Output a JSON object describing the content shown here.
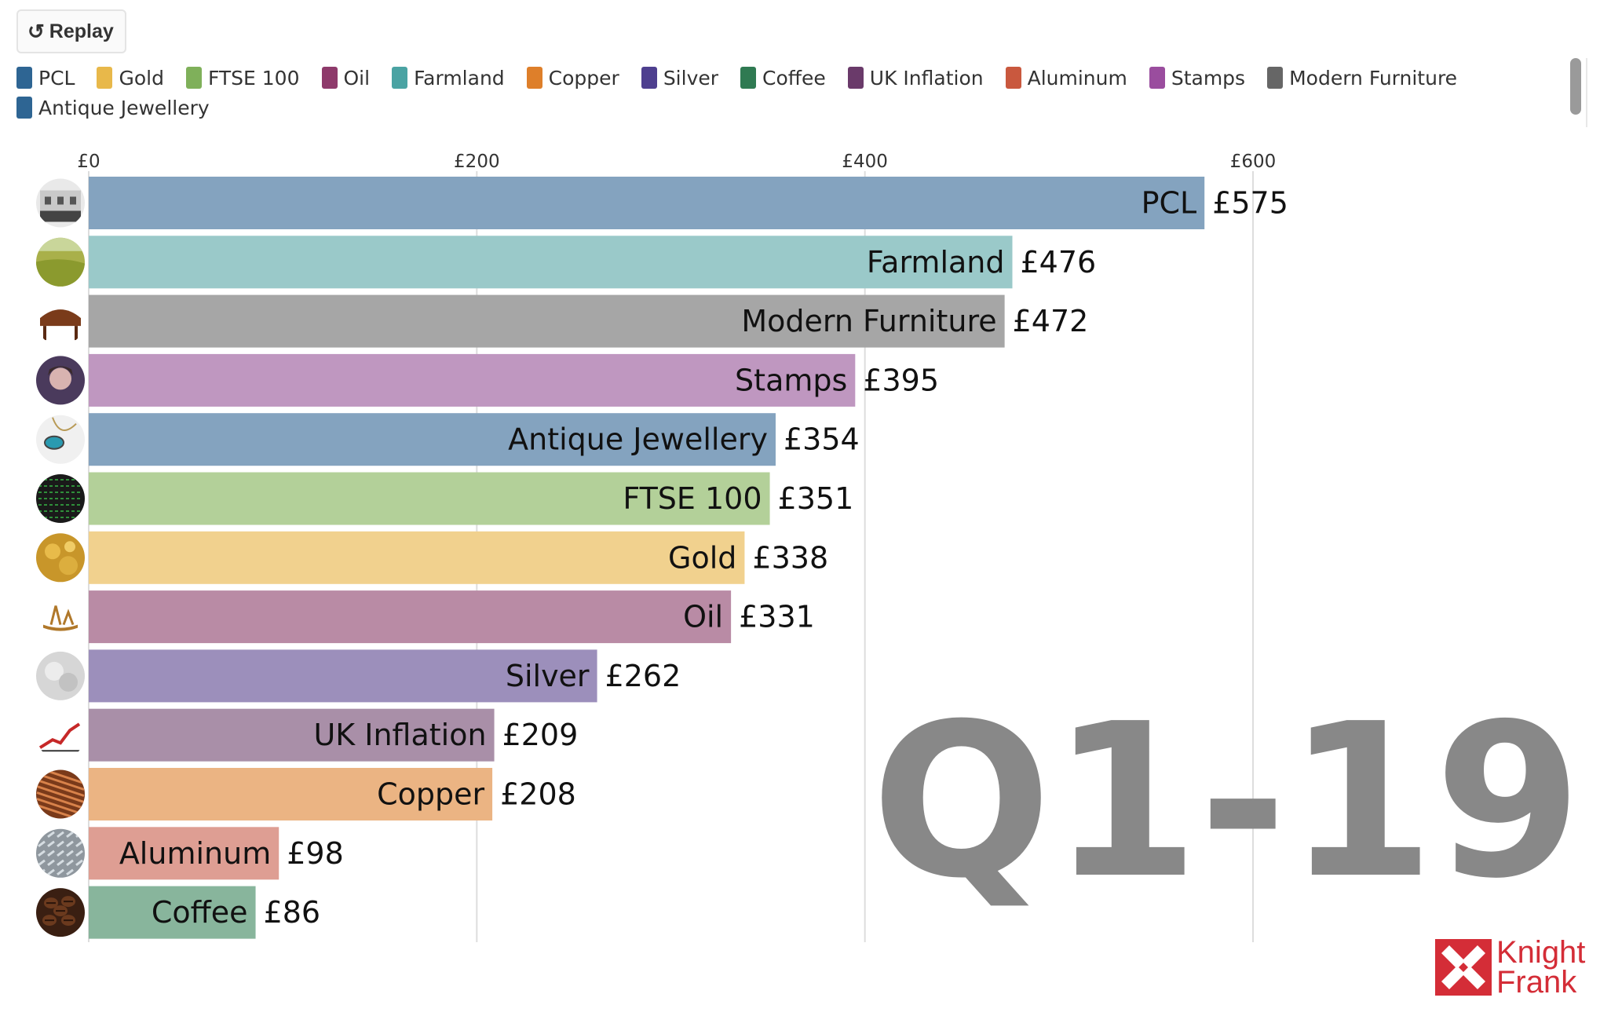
{
  "controls": {
    "replay_label": "Replay",
    "replay_icon": "replay-icon"
  },
  "legend": [
    {
      "label": "PCL",
      "color": "#2e6593"
    },
    {
      "label": "Gold",
      "color": "#e8b84a"
    },
    {
      "label": "FTSE 100",
      "color": "#7fb05a"
    },
    {
      "label": "Oil",
      "color": "#8e3a6b"
    },
    {
      "label": "Farmland",
      "color": "#4aa3a3"
    },
    {
      "label": "Copper",
      "color": "#de7f2a"
    },
    {
      "label": "Silver",
      "color": "#4e3f8f"
    },
    {
      "label": "Coffee",
      "color": "#2f7a52"
    },
    {
      "label": "UK Inflation",
      "color": "#6a3a6a"
    },
    {
      "label": "Aluminum",
      "color": "#c9583e"
    },
    {
      "label": "Stamps",
      "color": "#9a4d9e"
    },
    {
      "label": "Modern Furniture",
      "color": "#666666"
    },
    {
      "label": "Antique Jewellery",
      "color": "#2e6593"
    }
  ],
  "chart_data": {
    "type": "bar",
    "orientation": "horizontal",
    "title": "",
    "period": "Q1-19",
    "xlim": [
      0,
      600
    ],
    "x_ticks": [
      {
        "value": 0,
        "label": "£0"
      },
      {
        "value": 200,
        "label": "£200"
      },
      {
        "value": 400,
        "label": "£400"
      },
      {
        "value": 600,
        "label": "£600"
      }
    ],
    "grid": true,
    "bars": [
      {
        "label": "PCL",
        "value": 575,
        "value_label": "£575",
        "color": "#84a3bf",
        "icon": "building-icon"
      },
      {
        "label": "Farmland",
        "value": 476,
        "value_label": "£476",
        "color": "#9ac9c9",
        "icon": "field-icon"
      },
      {
        "label": "Modern Furniture",
        "value": 472,
        "value_label": "£472",
        "color": "#a6a6a6",
        "icon": "furniture-icon"
      },
      {
        "label": "Stamps",
        "value": 395,
        "value_label": "£395",
        "color": "#bf97c0",
        "icon": "stamp-portrait-icon"
      },
      {
        "label": "Antique Jewellery",
        "value": 354,
        "value_label": "£354",
        "color": "#84a3bf",
        "icon": "jewellery-icon"
      },
      {
        "label": "FTSE 100",
        "value": 351,
        "value_label": "£351",
        "color": "#b3d099",
        "icon": "stock-ticker-icon"
      },
      {
        "label": "Gold",
        "value": 338,
        "value_label": "£338",
        "color": "#f1d18e",
        "icon": "gold-icon"
      },
      {
        "label": "Oil",
        "value": 331,
        "value_label": "£331",
        "color": "#b98ba5",
        "icon": "oil-rig-icon"
      },
      {
        "label": "Silver",
        "value": 262,
        "value_label": "£262",
        "color": "#9c8fbb",
        "icon": "silver-icon"
      },
      {
        "label": "UK Inflation",
        "value": 209,
        "value_label": "£209",
        "color": "#a98fa8",
        "icon": "inflation-chart-icon"
      },
      {
        "label": "Copper",
        "value": 208,
        "value_label": "£208",
        "color": "#ebb483",
        "icon": "copper-wire-icon"
      },
      {
        "label": "Aluminum",
        "value": 98,
        "value_label": "£98",
        "color": "#de9e93",
        "icon": "aluminum-plate-icon"
      },
      {
        "label": "Coffee",
        "value": 86,
        "value_label": "£86",
        "color": "#88b59c",
        "icon": "coffee-beans-icon"
      }
    ]
  },
  "brand": {
    "logo_line1": "Knight",
    "logo_line2": "Frank",
    "logo_color": "#d42d37"
  }
}
